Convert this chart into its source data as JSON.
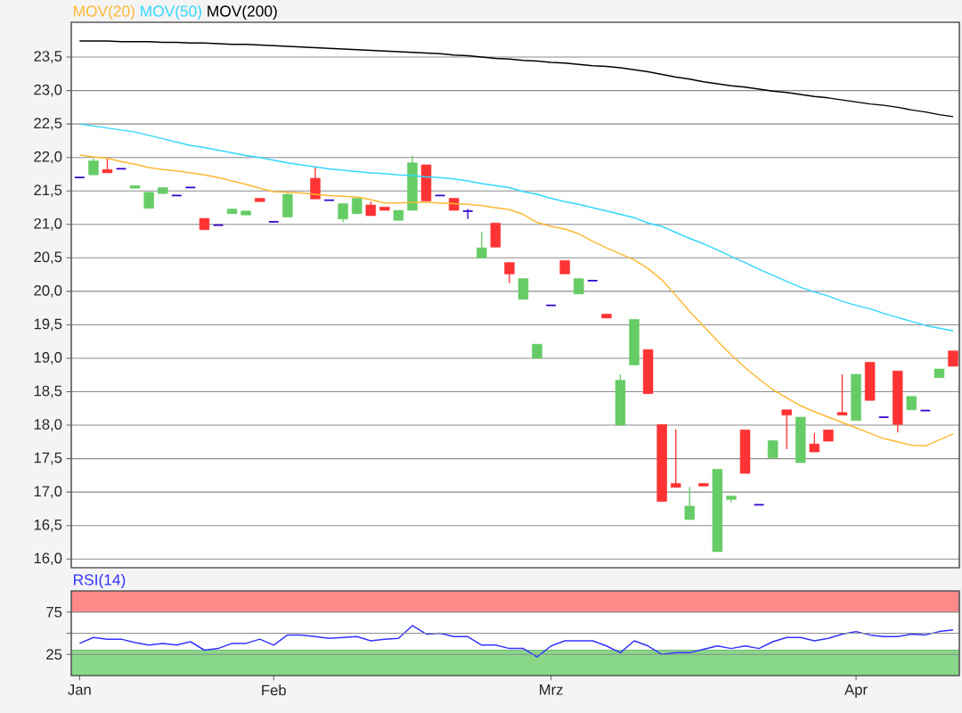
{
  "chart_data": [
    {
      "type": "candlestick",
      "categories": [
        null,
        null,
        null,
        null,
        null,
        null,
        null,
        null,
        null,
        null,
        null,
        null,
        null,
        null,
        null,
        null,
        null,
        null,
        null,
        null,
        null,
        null,
        null,
        null,
        null,
        null,
        null,
        null,
        null,
        null,
        null,
        null,
        null,
        null,
        null,
        null,
        null,
        null,
        null,
        null,
        null,
        null,
        null,
        null,
        null,
        null,
        null,
        null,
        null,
        null,
        null,
        null,
        null,
        null,
        null,
        null,
        null,
        null,
        null,
        null,
        null,
        null,
        null,
        null
      ],
      "ohlc": [
        [
          21.7,
          21.7,
          21.7,
          21.7
        ],
        [
          21.74,
          21.99,
          21.74,
          21.95
        ],
        [
          21.82,
          21.99,
          21.77,
          21.77
        ],
        [
          21.83,
          21.83,
          21.83,
          21.83
        ],
        [
          21.54,
          21.58,
          21.54,
          21.58
        ],
        [
          21.24,
          21.48,
          21.24,
          21.48
        ],
        [
          21.46,
          21.55,
          21.46,
          21.55
        ],
        [
          21.43,
          21.43,
          21.43,
          21.43
        ],
        [
          21.55,
          21.55,
          21.55,
          21.55
        ],
        [
          21.09,
          21.09,
          20.92,
          20.92
        ],
        [
          20.99,
          20.99,
          20.99,
          20.99
        ],
        [
          21.16,
          21.23,
          21.16,
          21.23
        ],
        [
          21.14,
          21.2,
          21.14,
          21.2
        ],
        [
          21.39,
          21.39,
          21.34,
          21.34
        ],
        [
          21.04,
          21.04,
          21.04,
          21.04
        ],
        [
          21.11,
          21.47,
          21.11,
          21.45
        ],
        null,
        [
          21.69,
          21.85,
          21.38,
          21.38
        ],
        [
          21.36,
          21.36,
          21.36,
          21.36
        ],
        [
          21.08,
          21.31,
          21.03,
          21.31
        ],
        [
          21.16,
          21.39,
          21.16,
          21.39
        ],
        [
          21.29,
          21.34,
          21.13,
          21.13
        ],
        [
          21.26,
          21.26,
          21.21,
          21.21
        ],
        [
          21.06,
          21.21,
          21.06,
          21.21
        ],
        [
          21.21,
          22.03,
          21.21,
          21.92
        ],
        [
          21.89,
          21.89,
          21.35,
          21.35
        ],
        [
          21.43,
          21.43,
          21.43,
          21.43
        ],
        [
          21.39,
          21.39,
          21.21,
          21.21
        ],
        [
          21.2,
          21.23,
          21.08,
          21.2
        ],
        [
          20.5,
          20.89,
          20.5,
          20.65
        ],
        [
          21.02,
          21.02,
          20.66,
          20.66
        ],
        [
          20.43,
          20.43,
          20.12,
          20.26
        ],
        [
          19.88,
          20.19,
          19.88,
          20.19
        ],
        [
          19.0,
          19.21,
          19.0,
          19.21
        ],
        [
          19.79,
          19.79,
          19.79,
          19.79
        ],
        [
          20.46,
          20.46,
          20.26,
          20.26
        ],
        [
          19.96,
          20.19,
          19.96,
          20.19
        ],
        [
          20.16,
          20.16,
          20.16,
          20.16
        ],
        [
          19.66,
          19.66,
          19.6,
          19.6
        ],
        [
          18.0,
          18.76,
          18.0,
          18.67
        ],
        [
          18.9,
          19.58,
          18.9,
          19.58
        ],
        [
          19.13,
          19.13,
          18.47,
          18.47
        ],
        [
          18.01,
          18.01,
          16.86,
          16.86
        ],
        [
          17.13,
          17.94,
          17.07,
          17.07
        ],
        [
          16.59,
          17.08,
          16.59,
          16.79
        ],
        [
          17.13,
          17.13,
          17.09,
          17.09
        ],
        [
          16.11,
          17.34,
          16.11,
          17.34
        ],
        [
          16.89,
          16.94,
          16.85,
          16.94
        ],
        [
          17.93,
          17.93,
          17.28,
          17.28
        ],
        [
          16.81,
          16.81,
          16.81,
          16.81
        ],
        [
          17.51,
          17.77,
          17.51,
          17.77
        ],
        [
          18.23,
          18.23,
          17.64,
          18.15
        ],
        [
          17.44,
          18.12,
          17.44,
          18.12
        ],
        [
          17.72,
          17.88,
          17.6,
          17.6
        ],
        [
          17.93,
          17.93,
          17.76,
          17.76
        ],
        [
          18.19,
          18.76,
          18.15,
          18.15
        ],
        [
          18.07,
          18.76,
          18.07,
          18.76
        ],
        [
          18.94,
          18.94,
          18.37,
          18.37
        ],
        [
          18.12,
          18.12,
          18.12,
          18.12
        ],
        [
          18.81,
          18.81,
          17.89,
          18.01
        ],
        [
          18.23,
          18.43,
          18.23,
          18.43
        ],
        [
          18.22,
          18.22,
          18.22,
          18.22
        ],
        [
          18.71,
          18.84,
          18.71,
          18.84
        ],
        [
          19.11,
          19.11,
          18.88,
          18.88
        ]
      ],
      "colors": [
        "#3300cc",
        "#66cc66",
        "#ff3333",
        "#3300cc",
        "#66cc66",
        "#66cc66",
        "#66cc66",
        "#3300cc",
        "#3300cc",
        "#ff3333",
        "#3300cc",
        "#66cc66",
        "#66cc66",
        "#ff3333",
        "#3300cc",
        "#66cc66",
        null,
        "#ff3333",
        "#3300cc",
        "#66cc66",
        "#66cc66",
        "#ff3333",
        "#ff3333",
        "#66cc66",
        "#66cc66",
        "#ff3333",
        "#3300cc",
        "#ff3333",
        "#3300cc",
        "#66cc66",
        "#ff3333",
        "#ff3333",
        "#66cc66",
        "#66cc66",
        "#3300cc",
        "#ff3333",
        "#66cc66",
        "#3300cc",
        "#ff3333",
        "#66cc66",
        "#66cc66",
        "#ff3333",
        "#ff3333",
        "#ff3333",
        "#66cc66",
        "#ff3333",
        "#66cc66",
        "#66cc66",
        "#ff3333",
        "#3300cc",
        "#66cc66",
        "#ff3333",
        "#66cc66",
        "#ff3333",
        "#ff3333",
        "#ff3333",
        "#66cc66",
        "#ff3333",
        "#3300cc",
        "#ff3333",
        "#66cc66",
        "#3300cc",
        "#66cc66",
        "#ff3333"
      ],
      "series": [
        {
          "name": "MOV(20)",
          "type": "line",
          "color": "#ffb833",
          "values": [
            22.04,
            22.01,
            21.99,
            21.94,
            21.9,
            21.85,
            21.82,
            21.8,
            21.77,
            21.74,
            21.7,
            21.65,
            21.6,
            21.54,
            21.49,
            21.48,
            21.47,
            21.45,
            21.43,
            21.42,
            21.41,
            21.37,
            21.32,
            21.32,
            21.33,
            21.33,
            21.32,
            21.31,
            21.3,
            21.28,
            21.25,
            21.22,
            21.15,
            21.03,
            20.97,
            20.93,
            20.86,
            20.75,
            20.65,
            20.56,
            20.47,
            20.34,
            20.17,
            19.94,
            19.7,
            19.48,
            19.26,
            19.05,
            18.86,
            18.69,
            18.53,
            18.41,
            18.29,
            18.2,
            18.12,
            18.04,
            17.96,
            17.88,
            17.8,
            17.75,
            17.7,
            17.69,
            17.78,
            17.87
          ]
        },
        {
          "name": "MOV(50)",
          "type": "line",
          "color": "#33d6ff",
          "values": [
            22.5,
            22.47,
            22.44,
            22.41,
            22.38,
            22.33,
            22.28,
            22.23,
            22.18,
            22.15,
            22.11,
            22.07,
            22.03,
            22.0,
            21.96,
            21.92,
            21.89,
            21.86,
            21.83,
            21.81,
            21.79,
            21.77,
            21.76,
            21.74,
            21.73,
            21.71,
            21.7,
            21.68,
            21.65,
            21.61,
            21.58,
            21.55,
            21.49,
            21.45,
            21.39,
            21.34,
            21.3,
            21.25,
            21.2,
            21.15,
            21.1,
            21.02,
            20.97,
            20.88,
            20.79,
            20.71,
            20.62,
            20.52,
            20.43,
            20.33,
            20.24,
            20.15,
            20.06,
            19.99,
            19.93,
            19.85,
            19.79,
            19.74,
            19.67,
            19.61,
            19.55,
            19.49,
            19.45,
            19.41
          ]
        },
        {
          "name": "MOV(200)",
          "type": "line",
          "color": "#000000",
          "values": [
            23.74,
            23.74,
            23.74,
            23.73,
            23.73,
            23.73,
            23.72,
            23.72,
            23.71,
            23.71,
            23.7,
            23.69,
            23.69,
            23.68,
            23.67,
            23.66,
            23.65,
            23.64,
            23.63,
            23.62,
            23.61,
            23.6,
            23.59,
            23.58,
            23.57,
            23.56,
            23.55,
            23.53,
            23.52,
            23.5,
            23.48,
            23.47,
            23.45,
            23.44,
            23.42,
            23.41,
            23.39,
            23.37,
            23.36,
            23.34,
            23.31,
            23.28,
            23.24,
            23.2,
            23.17,
            23.13,
            23.1,
            23.07,
            23.05,
            23.02,
            22.99,
            22.97,
            22.94,
            22.91,
            22.89,
            22.86,
            22.83,
            22.8,
            22.78,
            22.75,
            22.71,
            22.68,
            22.64,
            22.61
          ]
        }
      ],
      "ylim": [
        15.87,
        24.02
      ],
      "yticks": [
        {
          "value": 16.0,
          "label": "16,0"
        },
        {
          "value": 16.5,
          "label": "16,5"
        },
        {
          "value": 17.0,
          "label": "17,0"
        },
        {
          "value": 17.5,
          "label": "17,5"
        },
        {
          "value": 18.0,
          "label": "18,0"
        },
        {
          "value": 18.5,
          "label": "18,5"
        },
        {
          "value": 19.0,
          "label": "19,0"
        },
        {
          "value": 19.5,
          "label": "19,5"
        },
        {
          "value": 20.0,
          "label": "20,0"
        },
        {
          "value": 20.5,
          "label": "20,5"
        },
        {
          "value": 21.0,
          "label": "21,0"
        },
        {
          "value": 21.5,
          "label": "21,5"
        },
        {
          "value": 22.0,
          "label": "22,0"
        },
        {
          "value": 22.5,
          "label": "22,5"
        },
        {
          "value": 23.0,
          "label": "23,0"
        },
        {
          "value": 23.5,
          "label": "23,5"
        }
      ],
      "grid": "y",
      "tick_labels": "y"
    },
    {
      "type": "line",
      "categories": [
        "Jan",
        null,
        null,
        null,
        null,
        null,
        null,
        null,
        null,
        null,
        null,
        null,
        null,
        null,
        "Feb",
        null,
        null,
        null,
        null,
        null,
        null,
        null,
        null,
        null,
        null,
        null,
        null,
        null,
        null,
        null,
        null,
        null,
        null,
        null,
        "Mrz",
        null,
        null,
        null,
        null,
        null,
        null,
        null,
        null,
        null,
        null,
        null,
        null,
        null,
        null,
        null,
        null,
        null,
        null,
        null,
        null,
        null,
        "Apr",
        null,
        null,
        null,
        null,
        null,
        null,
        null
      ],
      "series": [
        {
          "name": "RSI(14)",
          "color": "#3333ff",
          "values": [
            38,
            45,
            43,
            43,
            39,
            36,
            38,
            36,
            40,
            30,
            32,
            38,
            38,
            43,
            36,
            48,
            48,
            46,
            44,
            45,
            46,
            41,
            43,
            44,
            59,
            49,
            50,
            46,
            46,
            36,
            36,
            32,
            32,
            22,
            35,
            41,
            41,
            41,
            35,
            27,
            41,
            35,
            25,
            27,
            27,
            31,
            35,
            32,
            35,
            32,
            40,
            45,
            45,
            41,
            44,
            49,
            52,
            48,
            46,
            46,
            49,
            48,
            52,
            54
          ]
        }
      ],
      "ylim": [
        0,
        100
      ],
      "yticks": [
        25,
        {
          "value": 50,
          "label": null
        },
        75
      ],
      "bands": [
        {
          "axis": "y",
          "from": 75,
          "to": 100,
          "color": "#ff8888"
        },
        {
          "axis": "y",
          "from": 0,
          "to": 30,
          "color": "#88d888"
        }
      ],
      "grid": "y"
    }
  ]
}
